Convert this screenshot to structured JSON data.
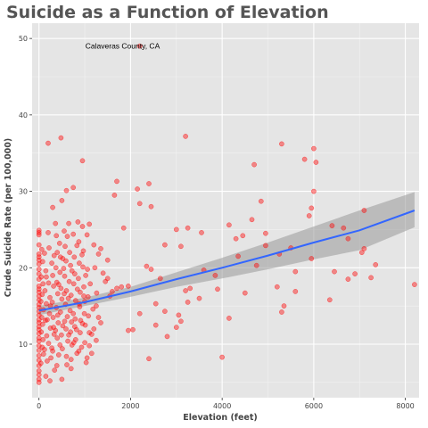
{
  "chart_data": {
    "type": "scatter",
    "title": "Suicide as a Function of Elevation",
    "xlabel": "Elevation (feet)",
    "ylabel": "Crude Suicide Rate (per 100,000)",
    "xlim": [
      -150,
      8300
    ],
    "ylim": [
      3,
      52
    ],
    "x_ticks": [
      0,
      2000,
      4000,
      6000,
      8000
    ],
    "y_ticks": [
      10,
      20,
      30,
      40,
      50
    ],
    "grid": true,
    "point_color": "#ff0000",
    "trend_color": "#3366ff",
    "band_color": "#999999",
    "background_color": "#e5e5e5",
    "annotation": {
      "text": "Calaveras County, CA",
      "x": 3000,
      "y": 49
    },
    "trend": {
      "x": [
        0,
        1000,
        2000,
        3000,
        4000,
        5000,
        6000,
        7000,
        8200
      ],
      "y": [
        14.4,
        15.5,
        16.9,
        18.5,
        20.0,
        21.6,
        23.3,
        24.9,
        27.5
      ],
      "lower": [
        13.8,
        15.0,
        16.2,
        17.5,
        18.6,
        19.8,
        21.1,
        22.3,
        25.3
      ],
      "upper": [
        15.0,
        16.1,
        17.5,
        19.4,
        21.3,
        23.3,
        25.4,
        27.5,
        29.9
      ]
    },
    "points": [
      [
        2200,
        49
      ],
      [
        200,
        36.3
      ],
      [
        480,
        37
      ],
      [
        3200,
        37.2
      ],
      [
        950,
        34
      ],
      [
        5300,
        36.2
      ],
      [
        6000,
        35.6
      ],
      [
        5800,
        34.2
      ],
      [
        6050,
        33.8
      ],
      [
        4700,
        33.5
      ],
      [
        1700,
        31.3
      ],
      [
        2400,
        31
      ],
      [
        2150,
        30.3
      ],
      [
        1650,
        29.5
      ],
      [
        750,
        30.5
      ],
      [
        600,
        30.1
      ],
      [
        6000,
        30
      ],
      [
        4850,
        28.7
      ],
      [
        500,
        28.8
      ],
      [
        2450,
        28
      ],
      [
        2200,
        28.4
      ],
      [
        300,
        27.9
      ],
      [
        5950,
        27.8
      ],
      [
        5900,
        26.8
      ],
      [
        7100,
        27.5
      ],
      [
        4650,
        26.3
      ],
      [
        6400,
        25.5
      ],
      [
        6650,
        25.2
      ],
      [
        3250,
        25.2
      ],
      [
        3000,
        25
      ],
      [
        4150,
        25.6
      ],
      [
        4450,
        24.2
      ],
      [
        3550,
        24.6
      ],
      [
        4950,
        24.5
      ],
      [
        6750,
        23.8
      ],
      [
        4300,
        23.8
      ],
      [
        2750,
        23
      ],
      [
        3100,
        22.8
      ],
      [
        4950,
        22.9
      ],
      [
        5500,
        22.6
      ],
      [
        7100,
        22.5
      ],
      [
        7050,
        22
      ],
      [
        5250,
        21.8
      ],
      [
        5950,
        21.2
      ],
      [
        4350,
        21.5
      ],
      [
        7350,
        20.4
      ],
      [
        2350,
        20.2
      ],
      [
        2450,
        19.8
      ],
      [
        4750,
        20.3
      ],
      [
        6450,
        19.5
      ],
      [
        3600,
        19.7
      ],
      [
        5600,
        19.5
      ],
      [
        6900,
        19.2
      ],
      [
        6750,
        18.5
      ],
      [
        7250,
        18.7
      ],
      [
        3850,
        19
      ],
      [
        2650,
        18.6
      ],
      [
        8200,
        17.8
      ],
      [
        3900,
        17.2
      ],
      [
        3300,
        17.3
      ],
      [
        5200,
        17.5
      ],
      [
        3200,
        17
      ],
      [
        5600,
        16.9
      ],
      [
        4500,
        16.7
      ],
      [
        3500,
        16
      ],
      [
        6350,
        15.8
      ],
      [
        2550,
        15.3
      ],
      [
        3250,
        15.5
      ],
      [
        5350,
        15
      ],
      [
        2750,
        14.3
      ],
      [
        5300,
        14.2
      ],
      [
        2200,
        14
      ],
      [
        3050,
        13.8
      ],
      [
        4150,
        13.4
      ],
      [
        3100,
        13
      ],
      [
        2550,
        12.5
      ],
      [
        2050,
        11.9
      ],
      [
        1950,
        11.8
      ],
      [
        3000,
        12.2
      ],
      [
        2800,
        11
      ],
      [
        2400,
        8.1
      ],
      [
        4000,
        8.3
      ],
      [
        1700,
        17.3
      ],
      [
        1800,
        17.5
      ],
      [
        1550,
        16.3
      ],
      [
        1600,
        16.9
      ],
      [
        1950,
        17.6
      ],
      [
        1450,
        18.2
      ],
      [
        1500,
        18.6
      ],
      [
        1400,
        19.3
      ],
      [
        1850,
        25.2
      ],
      [
        1500,
        21
      ],
      [
        1350,
        22.5
      ],
      [
        1200,
        23
      ],
      [
        1100,
        25.7
      ],
      [
        1300,
        21.8
      ],
      [
        1250,
        15
      ],
      [
        1300,
        13.5
      ],
      [
        1350,
        12.8
      ],
      [
        1200,
        12
      ],
      [
        1150,
        11.3
      ],
      [
        1250,
        10.5
      ],
      [
        1100,
        9.8
      ],
      [
        1150,
        8.8
      ],
      [
        1050,
        8.2
      ],
      [
        0,
        24.6
      ],
      [
        0,
        24.9
      ],
      [
        0,
        24.3
      ],
      [
        0,
        23
      ],
      [
        0,
        21.8
      ],
      [
        0,
        21.4
      ],
      [
        0,
        21
      ],
      [
        0,
        20.5
      ],
      [
        0,
        19.8
      ],
      [
        0,
        19.2
      ],
      [
        0,
        18.5
      ],
      [
        0,
        17.6
      ],
      [
        0,
        17.2
      ],
      [
        0,
        16.8
      ],
      [
        0,
        16.3
      ],
      [
        0,
        15.8
      ],
      [
        0,
        15.2
      ],
      [
        0,
        14.8
      ],
      [
        0,
        14.3
      ],
      [
        0,
        13.8
      ],
      [
        0,
        13.2
      ],
      [
        0,
        12.8
      ],
      [
        0,
        12.3
      ],
      [
        0,
        11.9
      ],
      [
        0,
        11.4
      ],
      [
        0,
        10.8
      ],
      [
        0,
        10.4
      ],
      [
        0,
        9.8
      ],
      [
        0,
        9.2
      ],
      [
        0,
        8.5
      ],
      [
        0,
        7.9
      ],
      [
        0,
        7.2
      ],
      [
        0,
        6.5
      ],
      [
        0,
        6
      ],
      [
        0,
        5.4
      ],
      [
        0,
        5
      ],
      [
        60,
        22.4
      ],
      [
        80,
        20.8
      ],
      [
        50,
        18.8
      ],
      [
        90,
        17.9
      ],
      [
        70,
        16.5
      ],
      [
        40,
        15.6
      ],
      [
        100,
        14.5
      ],
      [
        60,
        13.5
      ],
      [
        80,
        12.6
      ],
      [
        50,
        11.6
      ],
      [
        90,
        10.6
      ],
      [
        70,
        9.6
      ],
      [
        100,
        8.7
      ],
      [
        40,
        7.5
      ],
      [
        120,
        21.9
      ],
      [
        150,
        19.6
      ],
      [
        130,
        17
      ],
      [
        160,
        15.3
      ],
      [
        140,
        13.1
      ],
      [
        170,
        11.1
      ],
      [
        120,
        9.3
      ],
      [
        180,
        7.8
      ],
      [
        150,
        5.8
      ],
      [
        200,
        24.6
      ],
      [
        220,
        22.6
      ],
      [
        210,
        18
      ],
      [
        240,
        16.1
      ],
      [
        230,
        14
      ],
      [
        250,
        12.1
      ],
      [
        210,
        10.1
      ],
      [
        260,
        8.2
      ],
      [
        240,
        5.2
      ],
      [
        280,
        20.6
      ],
      [
        300,
        19
      ],
      [
        320,
        17.6
      ],
      [
        290,
        15.5
      ],
      [
        310,
        13.5
      ],
      [
        330,
        11.3
      ],
      [
        300,
        9.1
      ],
      [
        340,
        6.6
      ],
      [
        360,
        25.8
      ],
      [
        380,
        24.2
      ],
      [
        400,
        22
      ],
      [
        370,
        20
      ],
      [
        390,
        18.1
      ],
      [
        410,
        16.6
      ],
      [
        380,
        14.8
      ],
      [
        420,
        12.8
      ],
      [
        400,
        10.8
      ],
      [
        430,
        8.6
      ],
      [
        390,
        7.2
      ],
      [
        450,
        23.2
      ],
      [
        470,
        21.4
      ],
      [
        460,
        19.4
      ],
      [
        480,
        17.3
      ],
      [
        500,
        15.9
      ],
      [
        470,
        14.2
      ],
      [
        520,
        12.4
      ],
      [
        490,
        11.2
      ],
      [
        510,
        9.4
      ],
      [
        500,
        5.4
      ],
      [
        550,
        24.8
      ],
      [
        570,
        22.8
      ],
      [
        590,
        20.9
      ],
      [
        560,
        18.9
      ],
      [
        600,
        17
      ],
      [
        580,
        15.2
      ],
      [
        620,
        13.6
      ],
      [
        590,
        12
      ],
      [
        630,
        10.4
      ],
      [
        600,
        8.4
      ],
      [
        650,
        25.8
      ],
      [
        670,
        22
      ],
      [
        690,
        20.3
      ],
      [
        660,
        18.2
      ],
      [
        700,
        16.4
      ],
      [
        680,
        14.4
      ],
      [
        710,
        12.9
      ],
      [
        690,
        11.6
      ],
      [
        720,
        9.9
      ],
      [
        700,
        6.8
      ],
      [
        750,
        24.4
      ],
      [
        770,
        21.4
      ],
      [
        780,
        19.2
      ],
      [
        760,
        17.9
      ],
      [
        800,
        15.7
      ],
      [
        790,
        13.3
      ],
      [
        820,
        11.9
      ],
      [
        800,
        10.6
      ],
      [
        830,
        8.8
      ],
      [
        850,
        26
      ],
      [
        870,
        23.4
      ],
      [
        880,
        20.6
      ],
      [
        860,
        18.6
      ],
      [
        900,
        16.8
      ],
      [
        890,
        14.9
      ],
      [
        910,
        13.1
      ],
      [
        900,
        11.5
      ],
      [
        930,
        9.6
      ],
      [
        950,
        25.4
      ],
      [
        970,
        22.2
      ],
      [
        960,
        20.1
      ],
      [
        980,
        17.5
      ],
      [
        1000,
        15.6
      ],
      [
        990,
        14
      ],
      [
        1010,
        12.5
      ],
      [
        1000,
        10.2
      ],
      [
        1030,
        7.6
      ],
      [
        1050,
        24.3
      ],
      [
        1060,
        19.8
      ],
      [
        1070,
        16.2
      ],
      [
        1080,
        13.7
      ],
      [
        1100,
        11.5
      ],
      [
        700,
        8
      ],
      [
        560,
        13
      ],
      [
        430,
        17.8
      ],
      [
        330,
        21.6
      ],
      [
        520,
        21.2
      ],
      [
        640,
        16
      ],
      [
        780,
        12.3
      ],
      [
        880,
        15.3
      ],
      [
        940,
        21.7
      ],
      [
        250,
        15
      ],
      [
        180,
        13.2
      ],
      [
        160,
        18.8
      ],
      [
        460,
        9.9
      ],
      [
        610,
        7.3
      ],
      [
        720,
        19.6
      ],
      [
        840,
        17.2
      ],
      [
        1020,
        19
      ],
      [
        360,
        11.8
      ],
      [
        280,
        9.5
      ],
      [
        550,
        16.6
      ],
      [
        650,
        11.2
      ],
      [
        750,
        14
      ],
      [
        830,
        22.9
      ],
      [
        950,
        12.7
      ],
      [
        1120,
        17.9
      ],
      [
        1180,
        14.6
      ],
      [
        1220,
        20
      ],
      [
        1260,
        16.7
      ],
      [
        320,
        12.2
      ],
      [
        410,
        13.8
      ],
      [
        540,
        19.9
      ],
      [
        620,
        24.1
      ],
      [
        760,
        10.2
      ],
      [
        870,
        9.1
      ],
      [
        980,
        16.3
      ]
    ]
  }
}
